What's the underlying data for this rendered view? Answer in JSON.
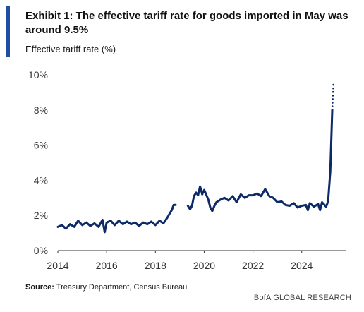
{
  "header": {
    "title": "Exhibit 1: The effective tariff rate for goods imported in May was around 9.5%",
    "subtitle": "Effective tariff rate (%)"
  },
  "footer": {
    "source_label": "Source:",
    "source_text": "Treasury Department, Census Bureau",
    "brand": "BofA GLOBAL RESEARCH"
  },
  "colors": {
    "accent": "#1f4ea3",
    "line": "#0d2a66",
    "axis": "#333333"
  },
  "chart_data": {
    "type": "line",
    "title": "Exhibit 1: The effective tariff rate for goods imported in May was around 9.5%",
    "ylabel": "Effective tariff rate (%)",
    "xlabel": "",
    "xlim": [
      2014,
      2025.8
    ],
    "ylim": [
      0,
      10
    ],
    "x_ticks": [
      "2014",
      "2016",
      "2018",
      "2020",
      "2022",
      "2024"
    ],
    "x_tick_values": [
      2014,
      2016,
      2018,
      2020,
      2022,
      2024
    ],
    "y_ticks": [
      "0%",
      "2%",
      "4%",
      "6%",
      "8%",
      "10%"
    ],
    "y_tick_values": [
      0,
      2,
      4,
      6,
      8,
      10
    ],
    "grid": false,
    "legend": "none",
    "series": [
      {
        "style": "solid",
        "segments": [
          [
            [
              2014.0,
              1.35
            ],
            [
              2014.17,
              1.45
            ],
            [
              2014.33,
              1.25
            ],
            [
              2014.5,
              1.5
            ],
            [
              2014.67,
              1.35
            ],
            [
              2014.83,
              1.7
            ],
            [
              2015.0,
              1.45
            ],
            [
              2015.17,
              1.6
            ],
            [
              2015.33,
              1.4
            ],
            [
              2015.5,
              1.55
            ],
            [
              2015.67,
              1.35
            ],
            [
              2015.83,
              1.75
            ],
            [
              2015.92,
              1.05
            ],
            [
              2016.0,
              1.6
            ],
            [
              2016.17,
              1.7
            ],
            [
              2016.33,
              1.45
            ],
            [
              2016.5,
              1.7
            ],
            [
              2016.67,
              1.5
            ],
            [
              2016.83,
              1.65
            ],
            [
              2017.0,
              1.5
            ],
            [
              2017.17,
              1.6
            ],
            [
              2017.33,
              1.4
            ],
            [
              2017.5,
              1.6
            ],
            [
              2017.67,
              1.5
            ],
            [
              2017.83,
              1.65
            ],
            [
              2018.0,
              1.45
            ],
            [
              2018.17,
              1.7
            ],
            [
              2018.33,
              1.55
            ],
            [
              2018.5,
              1.9
            ],
            [
              2018.58,
              2.1
            ],
            [
              2018.67,
              2.3
            ],
            [
              2018.75,
              2.6
            ],
            [
              2018.83,
              2.6
            ]
          ],
          [
            [
              2019.33,
              2.55
            ],
            [
              2019.42,
              2.35
            ],
            [
              2019.5,
              2.55
            ],
            [
              2019.58,
              3.1
            ],
            [
              2019.67,
              3.3
            ],
            [
              2019.75,
              3.15
            ],
            [
              2019.83,
              3.65
            ],
            [
              2019.92,
              3.2
            ],
            [
              2020.0,
              3.45
            ],
            [
              2020.08,
              3.2
            ],
            [
              2020.17,
              2.9
            ],
            [
              2020.25,
              2.45
            ],
            [
              2020.33,
              2.25
            ],
            [
              2020.42,
              2.55
            ],
            [
              2020.5,
              2.75
            ],
            [
              2020.67,
              2.9
            ],
            [
              2020.83,
              3.0
            ],
            [
              2021.0,
              2.85
            ],
            [
              2021.17,
              3.1
            ],
            [
              2021.33,
              2.75
            ],
            [
              2021.5,
              3.2
            ],
            [
              2021.67,
              3.0
            ],
            [
              2021.83,
              3.15
            ],
            [
              2022.0,
              3.15
            ],
            [
              2022.17,
              3.25
            ],
            [
              2022.33,
              3.1
            ],
            [
              2022.5,
              3.5
            ],
            [
              2022.67,
              3.1
            ],
            [
              2022.83,
              3.0
            ],
            [
              2023.0,
              2.75
            ],
            [
              2023.17,
              2.8
            ],
            [
              2023.33,
              2.6
            ],
            [
              2023.5,
              2.55
            ],
            [
              2023.67,
              2.7
            ],
            [
              2023.83,
              2.45
            ],
            [
              2024.0,
              2.55
            ],
            [
              2024.17,
              2.6
            ],
            [
              2024.25,
              2.3
            ],
            [
              2024.33,
              2.7
            ],
            [
              2024.5,
              2.5
            ],
            [
              2024.67,
              2.65
            ],
            [
              2024.75,
              2.3
            ],
            [
              2024.83,
              2.75
            ],
            [
              2025.0,
              2.5
            ],
            [
              2025.08,
              2.8
            ],
            [
              2025.17,
              4.5
            ],
            [
              2025.25,
              8.0
            ]
          ]
        ]
      },
      {
        "style": "dotted",
        "segments": [
          [
            [
              2025.25,
              8.0
            ],
            [
              2025.3,
              9.5
            ]
          ]
        ]
      }
    ]
  }
}
